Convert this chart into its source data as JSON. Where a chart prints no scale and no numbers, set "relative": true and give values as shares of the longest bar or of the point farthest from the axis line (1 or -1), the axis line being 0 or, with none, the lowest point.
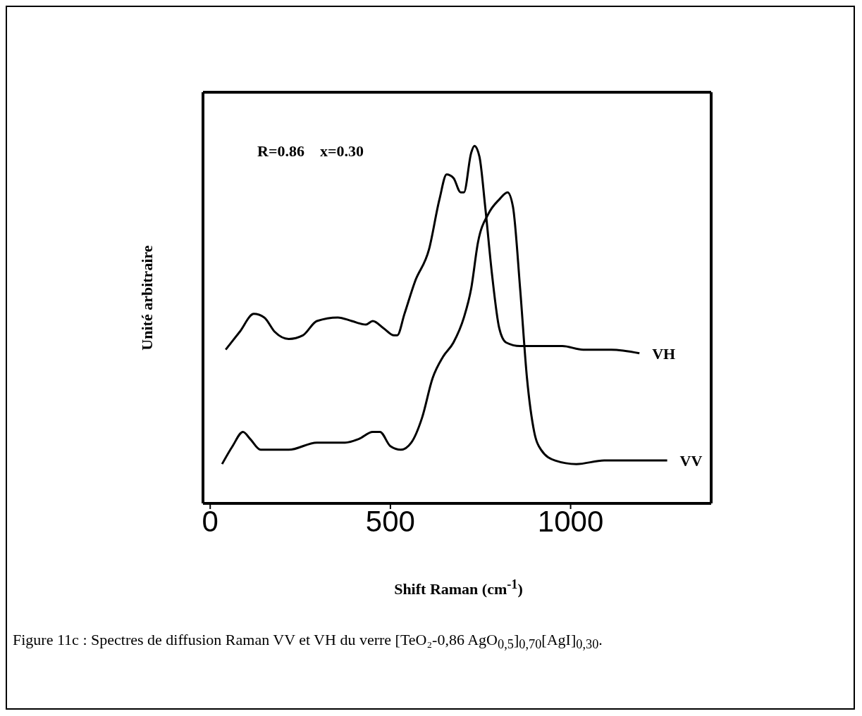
{
  "chart_data": {
    "type": "line",
    "relative": true,
    "xlabel": "Shift Raman (cm$^{-1}$)",
    "ylabel": "Unité arbitraire",
    "xlim": [
      -20,
      1390
    ],
    "xticks": [
      0,
      500,
      1000
    ],
    "marker": "none",
    "line_style": "solid",
    "annotations": [
      "R=0.86    x=0.30",
      "Figure 11c : Spectres de diffusion Raman VV et VH du verre [TeO₂-0,86 AgO$_{0,5}$]$_{0,70}$[AgI]$_{0,30}$."
    ],
    "series": [
      {
        "name": "VH",
        "color": "#000000",
        "x": [
          43,
          82,
          121,
          150,
          179,
          218,
          257,
          296,
          354,
          393,
          432,
          451,
          481,
          510,
          519,
          539,
          568,
          607,
          636,
          656,
          675,
          695,
          704,
          724,
          733,
          747,
          763,
          782,
          802,
          821,
          860,
          918,
          977,
          1035,
          1113,
          1191
        ],
        "values": [
          0.43,
          0.48,
          0.53,
          0.52,
          0.48,
          0.46,
          0.47,
          0.51,
          0.52,
          0.51,
          0.5,
          0.51,
          0.49,
          0.47,
          0.47,
          0.53,
          0.62,
          0.71,
          0.85,
          0.92,
          0.91,
          0.87,
          0.87,
          0.98,
          1,
          0.97,
          0.83,
          0.64,
          0.49,
          0.45,
          0.44,
          0.44,
          0.44,
          0.43,
          0.43,
          0.42
        ]
      },
      {
        "name": "VV",
        "color": "#000000",
        "x": [
          33,
          62,
          91,
          111,
          140,
          218,
          296,
          374,
          412,
          451,
          471,
          500,
          529,
          558,
          588,
          617,
          646,
          675,
          704,
          724,
          743,
          772,
          802,
          825,
          840,
          860,
          879,
          899,
          918,
          957,
          1016,
          1093,
          1191,
          1268
        ],
        "values": [
          0.11,
          0.16,
          0.2,
          0.18,
          0.15,
          0.15,
          0.17,
          0.17,
          0.18,
          0.2,
          0.2,
          0.16,
          0.15,
          0.17,
          0.24,
          0.35,
          0.41,
          0.45,
          0.52,
          0.6,
          0.73,
          0.81,
          0.85,
          0.87,
          0.83,
          0.6,
          0.35,
          0.2,
          0.15,
          0.12,
          0.11,
          0.12,
          0.12,
          0.12
        ]
      }
    ]
  }
}
